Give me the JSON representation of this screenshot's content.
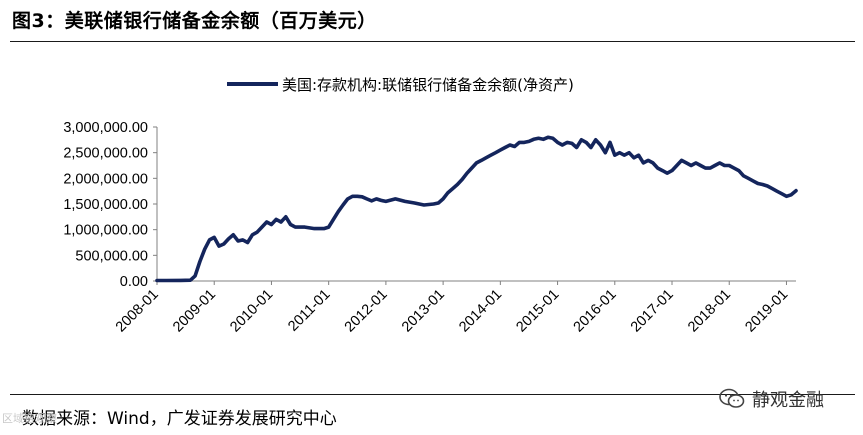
{
  "header": {
    "title": "图3：美联储银行储备金余额（百万美元）"
  },
  "footer": {
    "source": "数据来源：Wind，广发证券发展研究中心",
    "watermark_left": "区域链观察",
    "watermark_right": "静观金融"
  },
  "chart_data": {
    "type": "line",
    "title": "",
    "xlabel": "",
    "ylabel": "",
    "ylim": [
      0,
      3000000
    ],
    "yticks": [
      "3,000,000.00",
      "2,500,000.00",
      "2,000,000.00",
      "1,500,000.00",
      "1,000,000.00",
      "500,000.00",
      "0.00"
    ],
    "xticks": [
      "2008-01",
      "2009-01",
      "2010-01",
      "2011-01",
      "2012-01",
      "2013-01",
      "2014-01",
      "2015-01",
      "2016-01",
      "2017-01",
      "2018-01",
      "2019-01"
    ],
    "legend": "top-center",
    "series": [
      {
        "name": "美国:存款机构:联储银行储备金余额(净资产)",
        "color": "#14255c",
        "x": [
          "2008-01",
          "2008-03",
          "2008-06",
          "2008-08",
          "2008-09",
          "2008-10",
          "2008-11",
          "2008-12",
          "2009-01",
          "2009-02",
          "2009-03",
          "2009-04",
          "2009-05",
          "2009-06",
          "2009-07",
          "2009-08",
          "2009-09",
          "2009-10",
          "2009-11",
          "2009-12",
          "2010-01",
          "2010-02",
          "2010-03",
          "2010-04",
          "2010-05",
          "2010-06",
          "2010-08",
          "2010-10",
          "2010-12",
          "2011-01",
          "2011-02",
          "2011-03",
          "2011-04",
          "2011-05",
          "2011-06",
          "2011-07",
          "2011-08",
          "2011-09",
          "2011-10",
          "2011-11",
          "2011-12",
          "2012-01",
          "2012-03",
          "2012-05",
          "2012-07",
          "2012-09",
          "2012-11",
          "2012-12",
          "2013-01",
          "2013-02",
          "2013-03",
          "2013-04",
          "2013-05",
          "2013-06",
          "2013-07",
          "2013-08",
          "2013-09",
          "2013-10",
          "2013-11",
          "2013-12",
          "2014-01",
          "2014-02",
          "2014-03",
          "2014-04",
          "2014-05",
          "2014-06",
          "2014-07",
          "2014-08",
          "2014-09",
          "2014-10",
          "2014-11",
          "2014-12",
          "2015-01",
          "2015-02",
          "2015-03",
          "2015-04",
          "2015-05",
          "2015-06",
          "2015-07",
          "2015-08",
          "2015-09",
          "2015-10",
          "2015-11",
          "2015-12",
          "2016-01",
          "2016-02",
          "2016-03",
          "2016-04",
          "2016-05",
          "2016-06",
          "2016-07",
          "2016-08",
          "2016-09",
          "2016-10",
          "2016-11",
          "2016-12",
          "2017-01",
          "2017-02",
          "2017-03",
          "2017-04",
          "2017-05",
          "2017-06",
          "2017-07",
          "2017-08",
          "2017-09",
          "2017-10",
          "2017-11",
          "2017-12",
          "2018-01",
          "2018-02",
          "2018-03",
          "2018-04",
          "2018-05",
          "2018-06",
          "2018-07",
          "2018-08",
          "2018-09",
          "2018-10",
          "2018-11",
          "2018-12",
          "2019-01",
          "2019-02",
          "2019-03"
        ],
        "values": [
          10000,
          10000,
          12000,
          15000,
          100000,
          380000,
          620000,
          800000,
          850000,
          680000,
          720000,
          820000,
          900000,
          780000,
          800000,
          750000,
          900000,
          950000,
          1050000,
          1150000,
          1100000,
          1200000,
          1150000,
          1250000,
          1100000,
          1050000,
          1050000,
          1020000,
          1020000,
          1050000,
          1200000,
          1350000,
          1480000,
          1600000,
          1650000,
          1650000,
          1640000,
          1600000,
          1560000,
          1600000,
          1570000,
          1550000,
          1600000,
          1550000,
          1520000,
          1480000,
          1500000,
          1520000,
          1600000,
          1720000,
          1800000,
          1880000,
          1980000,
          2100000,
          2200000,
          2300000,
          2350000,
          2400000,
          2450000,
          2500000,
          2550000,
          2600000,
          2650000,
          2620000,
          2700000,
          2700000,
          2720000,
          2760000,
          2780000,
          2760000,
          2800000,
          2780000,
          2700000,
          2650000,
          2700000,
          2680000,
          2600000,
          2750000,
          2700000,
          2600000,
          2750000,
          2650000,
          2500000,
          2700000,
          2450000,
          2500000,
          2450000,
          2500000,
          2400000,
          2450000,
          2300000,
          2350000,
          2300000,
          2200000,
          2150000,
          2100000,
          2150000,
          2250000,
          2350000,
          2300000,
          2250000,
          2300000,
          2250000,
          2200000,
          2200000,
          2250000,
          2300000,
          2250000,
          2250000,
          2200000,
          2150000,
          2050000,
          2000000,
          1950000,
          1900000,
          1880000,
          1850000,
          1800000,
          1750000,
          1700000,
          1650000,
          1680000,
          1760000
        ]
      }
    ]
  }
}
